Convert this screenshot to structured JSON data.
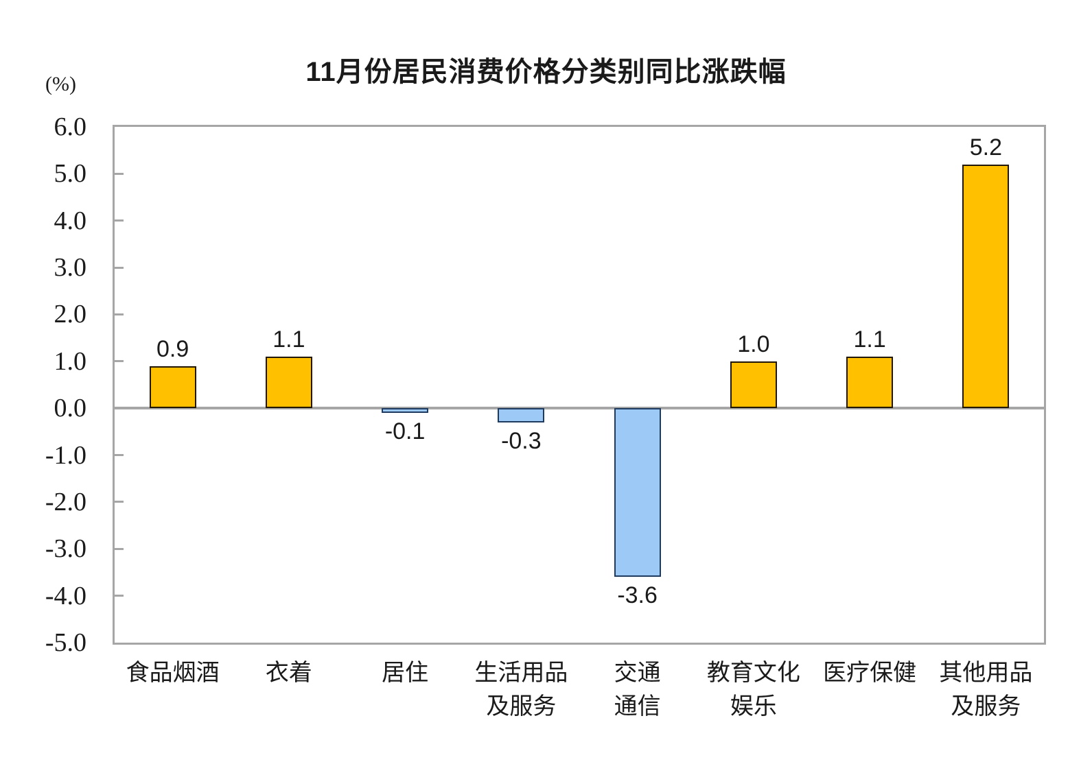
{
  "title": "11月份居民消费价格分类别同比涨跌幅",
  "chart_data": {
    "type": "bar",
    "title": "11月份居民消费价格分类别同比涨跌幅",
    "ylabel": "(%)",
    "xlabel": "",
    "categories": [
      "食品烟酒",
      "衣着",
      "居住",
      "生活用品及服务",
      "交通通信",
      "教育文化娱乐",
      "医疗保健",
      "其他用品及服务"
    ],
    "category_label_lines": [
      [
        "食品烟酒"
      ],
      [
        "衣着"
      ],
      [
        "居住"
      ],
      [
        "生活用品",
        "及服务"
      ],
      [
        "交通",
        "通信"
      ],
      [
        "教育文化",
        "娱乐"
      ],
      [
        "医疗保健"
      ],
      [
        "其他用品",
        "及服务"
      ]
    ],
    "values": [
      0.9,
      1.1,
      -0.1,
      -0.3,
      -3.6,
      1.0,
      1.1,
      5.2
    ],
    "data_labels": [
      "0.9",
      "1.1",
      "-0.1",
      "-0.3",
      "-3.6",
      "1.0",
      "1.1",
      "5.2"
    ],
    "ylim": [
      -5.0,
      6.0
    ],
    "ytick_step": 1.0,
    "ytick_labels": [
      "6.0",
      "5.0",
      "4.0",
      "3.0",
      "2.0",
      "1.0",
      "0.0",
      "-1.0",
      "-2.0",
      "-3.0",
      "-4.0",
      "-5.0"
    ],
    "grid": false,
    "legend": false,
    "colors": {
      "positive_fill": "#FFC000",
      "positive_border": "#211600",
      "negative_fill": "#9CC9F5",
      "negative_border": "#1E3A5F",
      "axis": "#A6A6A6",
      "text": "#1A1A1A"
    }
  }
}
